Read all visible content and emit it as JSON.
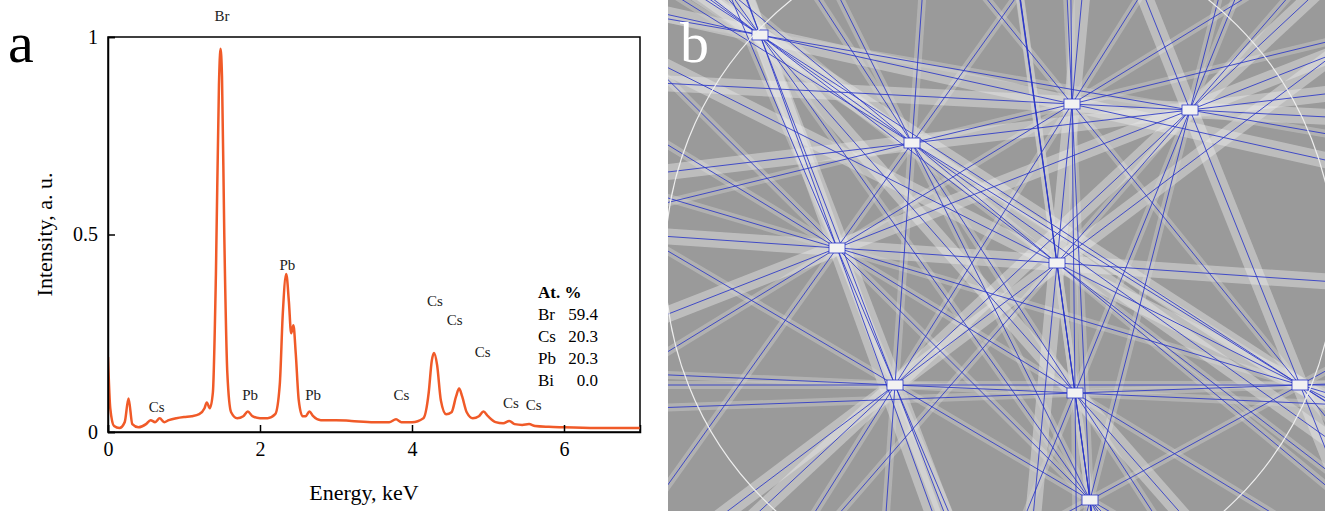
{
  "chart_data": {
    "type": "line",
    "panel_label": "a",
    "xlabel": "Energy, keV",
    "ylabel": "Intensity, a. u.",
    "color": "#f05a28",
    "xlim": [
      0,
      7
    ],
    "ylim": [
      0,
      1
    ],
    "xticks": [
      0,
      2,
      4,
      6
    ],
    "yticks": [
      0,
      0.5,
      1
    ],
    "x": [
      0,
      0.03,
      0.08,
      0.15,
      0.22,
      0.27,
      0.32,
      0.4,
      0.5,
      0.56,
      0.62,
      0.68,
      0.74,
      0.8,
      0.9,
      1.0,
      1.1,
      1.2,
      1.27,
      1.3,
      1.34,
      1.38,
      1.42,
      1.46,
      1.48,
      1.5,
      1.53,
      1.57,
      1.62,
      1.7,
      1.78,
      1.84,
      1.9,
      2.0,
      2.1,
      2.2,
      2.26,
      2.3,
      2.345,
      2.38,
      2.41,
      2.44,
      2.47,
      2.51,
      2.56,
      2.6,
      2.65,
      2.7,
      2.8,
      3.0,
      3.2,
      3.5,
      3.7,
      3.79,
      3.86,
      4.0,
      4.15,
      4.22,
      4.26,
      4.29,
      4.33,
      4.38,
      4.45,
      4.52,
      4.58,
      4.62,
      4.66,
      4.72,
      4.8,
      4.88,
      4.94,
      5.0,
      5.1,
      5.2,
      5.28,
      5.35,
      5.45,
      5.54,
      5.62,
      5.8,
      6.0,
      6.5,
      7.0
    ],
    "values": [
      0.19,
      0.06,
      0.015,
      0.01,
      0.025,
      0.085,
      0.02,
      0.012,
      0.02,
      0.03,
      0.025,
      0.035,
      0.025,
      0.03,
      0.035,
      0.038,
      0.04,
      0.045,
      0.06,
      0.075,
      0.06,
      0.1,
      0.4,
      0.88,
      0.97,
      0.9,
      0.5,
      0.15,
      0.05,
      0.035,
      0.04,
      0.052,
      0.04,
      0.035,
      0.035,
      0.045,
      0.12,
      0.3,
      0.4,
      0.33,
      0.25,
      0.27,
      0.2,
      0.08,
      0.04,
      0.04,
      0.052,
      0.04,
      0.03,
      0.03,
      0.028,
      0.025,
      0.025,
      0.032,
      0.025,
      0.025,
      0.035,
      0.1,
      0.18,
      0.2,
      0.17,
      0.08,
      0.045,
      0.05,
      0.09,
      0.11,
      0.09,
      0.05,
      0.035,
      0.04,
      0.052,
      0.04,
      0.025,
      0.022,
      0.028,
      0.02,
      0.018,
      0.02,
      0.015,
      0.013,
      0.012,
      0.01,
      0.01
    ],
    "annotations": [
      {
        "text": "Cs",
        "x": 0.64,
        "y": 0.05
      },
      {
        "text": "Br",
        "x": 1.5,
        "y": 1.04
      },
      {
        "text": "Pb",
        "x": 1.87,
        "y": 0.08
      },
      {
        "text": "Pb",
        "x": 2.36,
        "y": 0.41
      },
      {
        "text": "Pb",
        "x": 2.7,
        "y": 0.08
      },
      {
        "text": "Cs",
        "x": 3.86,
        "y": 0.08
      },
      {
        "text": "Cs",
        "x": 4.3,
        "y": 0.32
      },
      {
        "text": "Cs",
        "x": 4.56,
        "y": 0.27
      },
      {
        "text": "Cs",
        "x": 4.93,
        "y": 0.19
      },
      {
        "text": "Cs",
        "x": 5.3,
        "y": 0.06
      },
      {
        "text": "Cs",
        "x": 5.6,
        "y": 0.055
      }
    ],
    "table": {
      "title": "At. %",
      "rows": [
        {
          "element": "Br",
          "value": 59.4,
          "label": "59.4"
        },
        {
          "element": "Cs",
          "value": 20.3,
          "label": "20.3"
        },
        {
          "element": "Pb",
          "value": 20.3,
          "label": "20.3"
        },
        {
          "element": "Bi",
          "value": 0,
          "label": "0.0"
        }
      ]
    }
  },
  "image_panel": {
    "panel_label": "b"
  }
}
